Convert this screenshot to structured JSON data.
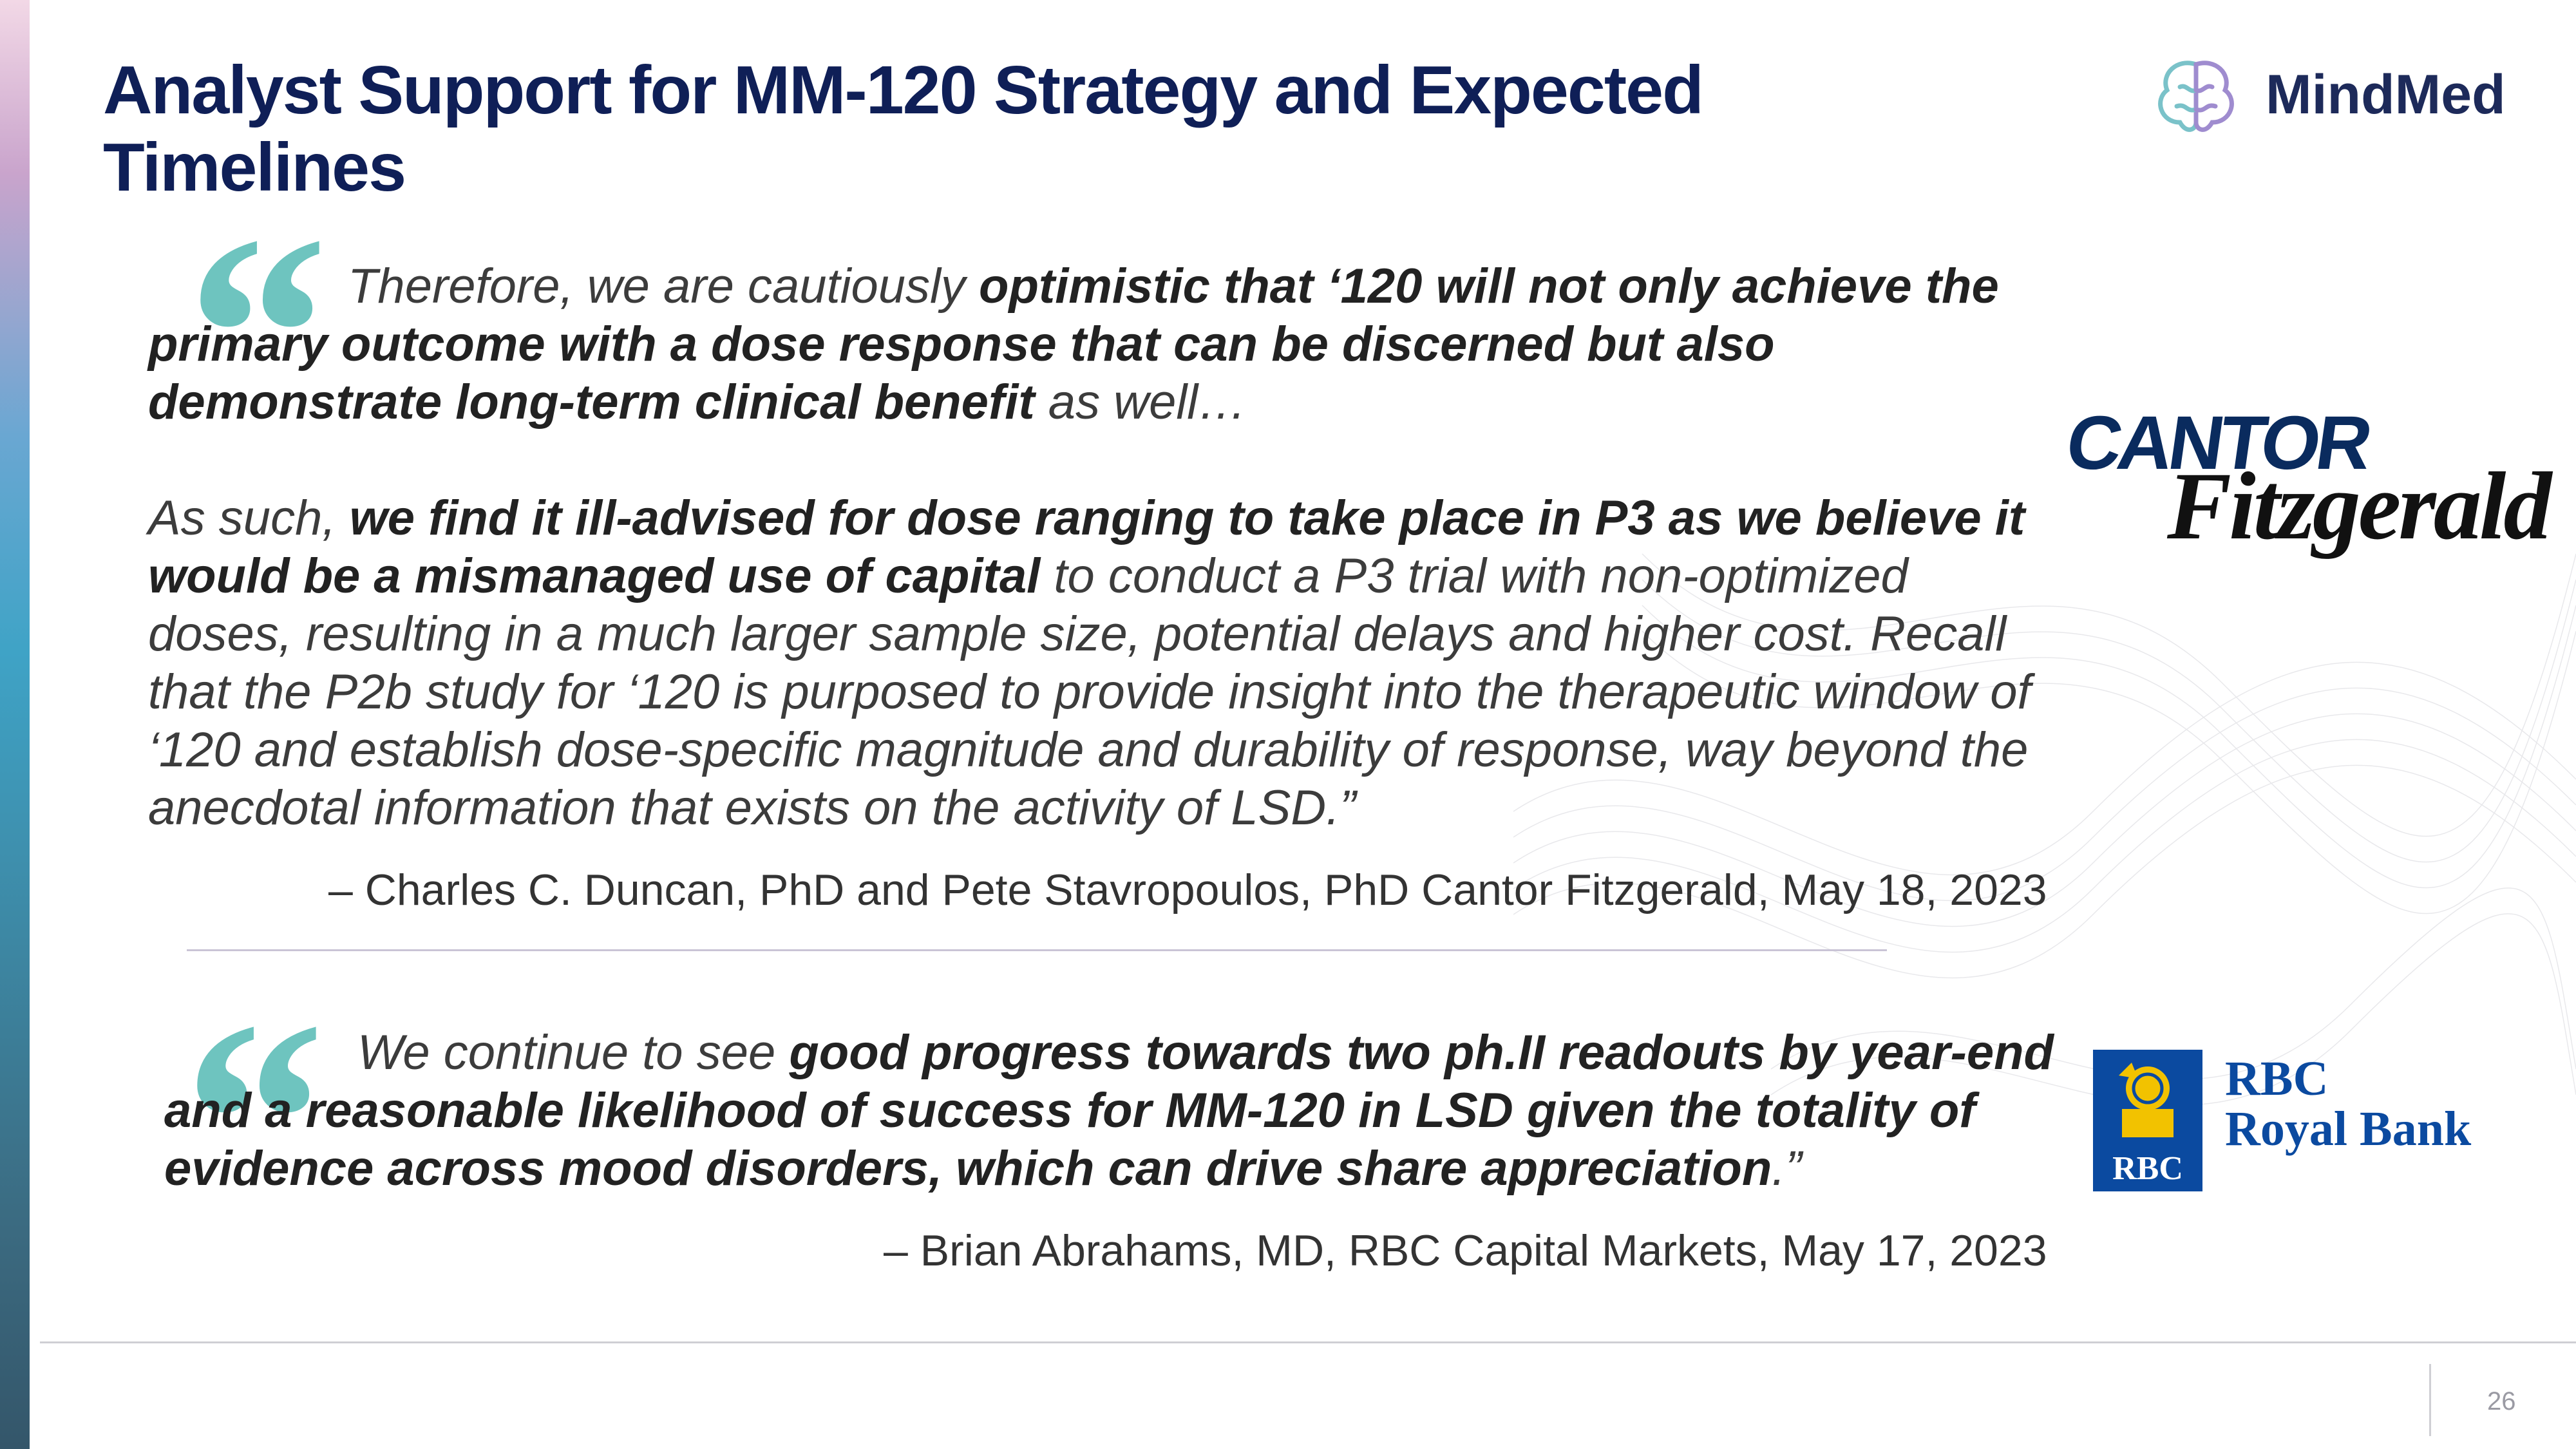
{
  "title": "Analyst Support for MM-120 Strategy and Expected Timelines",
  "brand": {
    "name": "MindMed",
    "icon": "brain-icon"
  },
  "quote1": {
    "mark": "“",
    "p1_plain_1": "Therefore, we are cautiously ",
    "p1_bold": "optimistic that ‘120 will not only achieve the primary outcome with a dose response that can be discerned but also demonstrate long-term clinical benefit",
    "p1_plain_2": " as well…",
    "p2_plain_1": "As such, ",
    "p2_bold": "we find it ill-advised for dose ranging to take place in P3 as we believe it would be a mismanaged use of capital",
    "p2_plain_2": " to conduct a P3 trial with non-optimized doses, resulting in a much larger sample size, potential delays and higher cost. Recall that the P2b study for ‘120 is purposed to provide insight into the therapeutic window of ‘120 and establish dose-specific magnitude and durability of response, way beyond the anecdotal information that exists on the activity of LSD.”",
    "attribution": "– Charles C. Duncan, PhD and Pete Stavropoulos, PhD Cantor Fitzgerald, May 18, 2023"
  },
  "quote2": {
    "mark": "“",
    "plain_1": "We continue to see ",
    "bold": "good progress towards two ph.II readouts by year-end and a reasonable likelihood of success for MM-120 in LSD given the totality of evidence across mood disorders, which can drive share appreciation",
    "plain_2": ".”",
    "attribution": "– Brian Abrahams, MD, RBC Capital Markets, May 17, 2023"
  },
  "logos": {
    "cantor_word": "CANTOR",
    "fitzgerald_word": "Fitzgerald",
    "rbc_shield": "RBC",
    "rbc_line1": "RBC",
    "rbc_line2": "Royal Bank"
  },
  "page_number": "26",
  "colors": {
    "title": "#0f1f57",
    "quote_mark": "#6ec4bf",
    "rbc_blue": "#0b4aa0",
    "cantor_navy": "#0a2b5e"
  }
}
